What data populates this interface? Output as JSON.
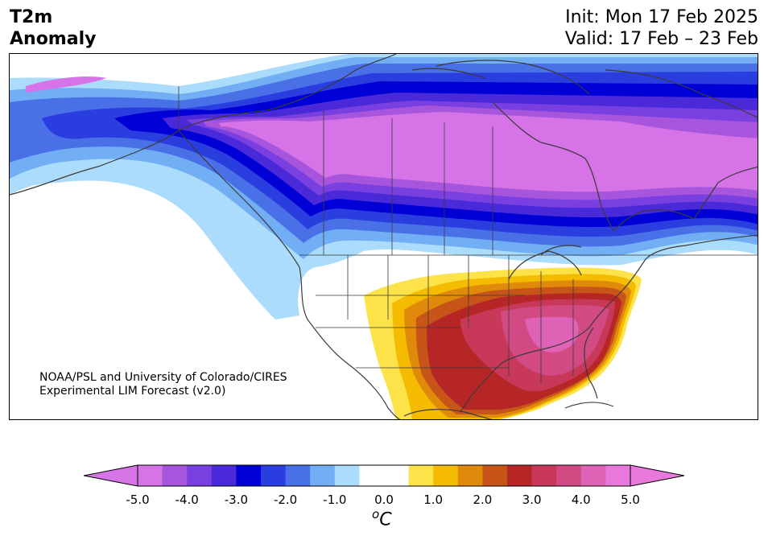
{
  "header": {
    "title": "T2m\nAnomaly",
    "init": "Init: Mon 17 Feb 2025",
    "valid": "Valid: 17 Feb – 23 Feb"
  },
  "credit": "NOAA/PSL and University of Colorado/CIRES\nExperimental LIM Forecast (v2.0)",
  "colorbar": {
    "unit_base": "C",
    "unit_super": "o",
    "ticks": [
      "-5.0",
      "-4.0",
      "-3.0",
      "-2.0",
      "-1.0",
      "0.0",
      "1.0",
      "2.0",
      "3.0",
      "4.0",
      "5.0"
    ],
    "colors": [
      "#d673e6",
      "#a855de",
      "#7a3fe0",
      "#4a2ad8",
      "#0000d6",
      "#2a3ee0",
      "#4a70e8",
      "#72aef4",
      "#acdcfc",
      "#ffffff",
      "#ffffff",
      "#fde24a",
      "#f4bb00",
      "#e08a0c",
      "#c85518",
      "#b62626",
      "#c83858",
      "#d24a84",
      "#de63b6",
      "#e978dc"
    ],
    "extend_low": "#d673e6",
    "extend_high": "#e978dc"
  },
  "map_colors": {
    "c_m5": "#d673e6",
    "c_m45": "#a855de",
    "c_m4": "#7a3fe0",
    "c_m35": "#4a2ad8",
    "c_m3": "#0000d6",
    "c_m25": "#2a3ee0",
    "c_m2": "#4a70e8",
    "c_m15": "#72aef4",
    "c_m1": "#acdcfc",
    "c_p1": "#fde24a",
    "c_p15": "#f4bb00",
    "c_p2": "#e08a0c",
    "c_p25": "#c85518",
    "c_p3": "#b62626",
    "c_p35": "#c83858",
    "c_p4": "#d24a84",
    "c_p45": "#de63b6",
    "border": "#3a3a3a"
  }
}
